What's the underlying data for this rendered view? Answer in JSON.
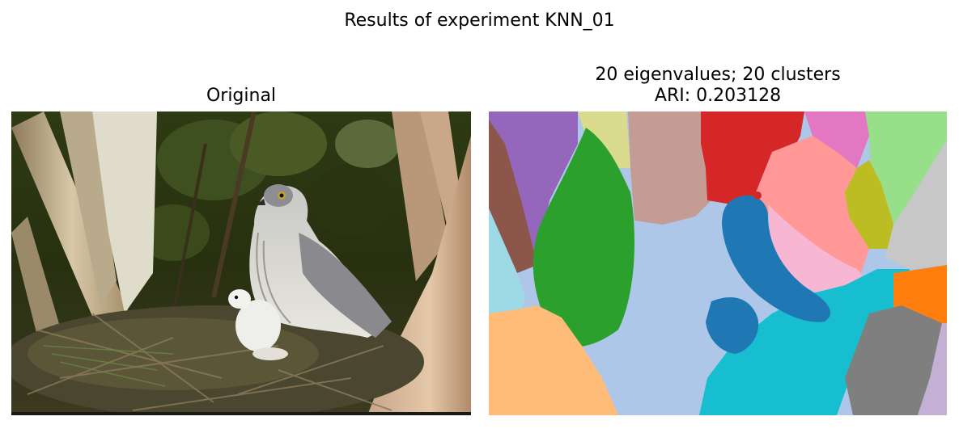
{
  "figure": {
    "suptitle": "Results of experiment KNN_01",
    "left_panel": {
      "title": "Original",
      "image": "photo of a hawk with chick in a nest among tree trunks"
    },
    "right_panel": {
      "title_line1": "20 eigenvalues; 20 clusters",
      "title_line2": "ARI: 0.203128",
      "image": "segmentation map with 20 colored clusters"
    }
  },
  "colors": {
    "tab_blue": "#1f77b4",
    "tab_lightblue": "#aec7e8",
    "tab_orange": "#ff7f0e",
    "tab_lightorange": "#ffbb78",
    "tab_green": "#2ca02c",
    "tab_red": "#d62728",
    "tab_salmon": "#ff9896",
    "tab_purple": "#9467bd",
    "tab_brown": "#8c564b",
    "tab_tan": "#c49c94",
    "tab_pink": "#e377c2",
    "tab_lightpink": "#f7b6d2",
    "tab_gray": "#7f7f7f",
    "tab_lightgray": "#c7c7c7",
    "tab_olive": "#bcbd22",
    "tab_khaki": "#dbdb8d",
    "tab_cyan": "#17becf",
    "tab_lightcyan": "#9edae5",
    "tab_lightgreen": "#98df8a",
    "tab_lavender": "#c5b0d5"
  }
}
